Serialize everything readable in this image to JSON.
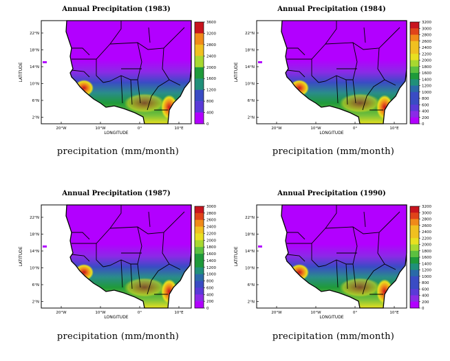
{
  "panels": [
    {
      "title": "Annual Precipitation (1983)",
      "caption": "precipitation (mm/month)",
      "colorbar_ticks": [
        "3600",
        "3200",
        "2800",
        "2400",
        "2000",
        "1600",
        "1200",
        "800",
        "400",
        "0"
      ],
      "colorbar_max": 3600
    },
    {
      "title": "Annual Precipitation (1984)",
      "caption": "precipitation (mm/month)",
      "colorbar_ticks": [
        "3200",
        "3000",
        "2800",
        "2600",
        "2400",
        "2200",
        "2000",
        "1800",
        "1600",
        "1400",
        "1200",
        "1000",
        "800",
        "600",
        "400",
        "200",
        "0"
      ],
      "colorbar_max": 3200
    },
    {
      "title": "Annual Precipitation (1987)",
      "caption": "precipitation (mm/month)",
      "colorbar_ticks": [
        "3000",
        "2800",
        "2600",
        "2400",
        "2200",
        "2000",
        "1800",
        "1600",
        "1400",
        "1200",
        "1000",
        "800",
        "600",
        "400",
        "200",
        "0"
      ],
      "colorbar_max": 3000
    },
    {
      "title": "Annual Precipitation (1990)",
      "caption": "precipitation (mm/month)",
      "colorbar_ticks": [
        "3200",
        "3000",
        "2800",
        "2600",
        "2400",
        "2200",
        "2000",
        "1800",
        "1600",
        "1400",
        "1200",
        "1000",
        "800",
        "600",
        "400",
        "200",
        "0"
      ],
      "colorbar_max": 3200
    }
  ],
  "axes": {
    "xlabel": "LONGITUDE",
    "ylabel": "LATITUDE",
    "xticks": [
      "20°W",
      "10°W",
      "0°",
      "10°E"
    ],
    "yticks": [
      "22°N",
      "18°N",
      "14°N",
      "10°N",
      "6°N",
      "2°N"
    ]
  },
  "colors": {
    "purple": "#b200ff",
    "blue": "#3a4cc4",
    "green": "#1f9a3a",
    "yellow": "#e8e020",
    "orange": "#f08a1a",
    "red": "#c8141e"
  }
}
